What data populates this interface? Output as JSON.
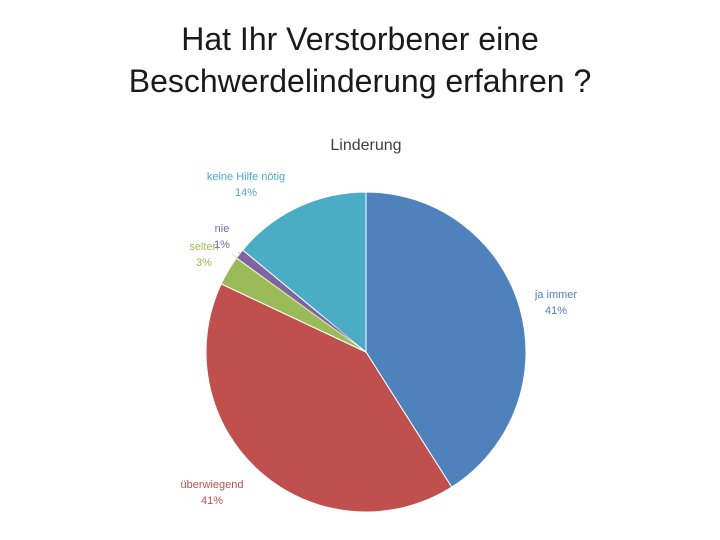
{
  "slide": {
    "title_line1": "Hat Ihr Verstorbener eine",
    "title_line2": "Beschwerdelinderung erfahren ?"
  },
  "chart_data": {
    "type": "pie",
    "title": "Linderung",
    "slices": [
      {
        "label": "ja immer",
        "value": 41,
        "display": "41%",
        "color": "#4F81BD",
        "label_color": "#4F81BD"
      },
      {
        "label": "überwiegend",
        "value": 41,
        "display": "41%",
        "color": "#C0504D",
        "label_color": "#C0504D"
      },
      {
        "label": "selten",
        "value": 3,
        "display": "3%",
        "color": "#9BBB59",
        "label_color": "#9BBB59"
      },
      {
        "label": "nie",
        "value": 1,
        "display": "1%",
        "color": "#8064A2",
        "label_color": "#8064A2"
      },
      {
        "label": "keine Hilfe nötig",
        "value": 14,
        "display": "14%",
        "color": "#4BACC6",
        "label_color": "#4BACC6"
      }
    ],
    "start_angle_deg": 0,
    "direction": "clockwise"
  }
}
